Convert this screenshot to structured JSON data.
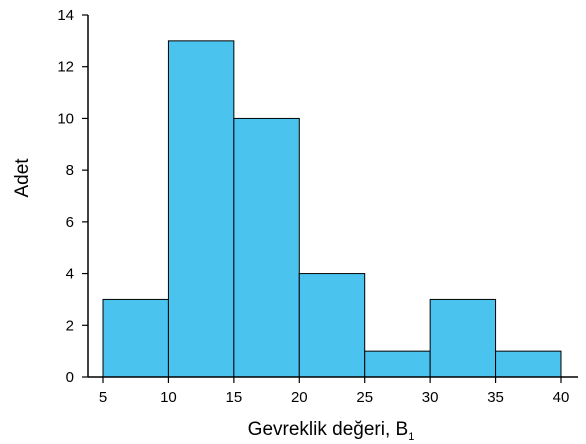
{
  "chart_data": {
    "type": "bar",
    "variant": "histogram",
    "bins": [
      {
        "start": 5,
        "end": 10,
        "value": 3
      },
      {
        "start": 10,
        "end": 15,
        "value": 13
      },
      {
        "start": 15,
        "end": 20,
        "value": 10
      },
      {
        "start": 20,
        "end": 25,
        "value": 4
      },
      {
        "start": 25,
        "end": 30,
        "value": 1
      },
      {
        "start": 30,
        "end": 35,
        "value": 3
      },
      {
        "start": 35,
        "end": 40,
        "value": 1
      }
    ],
    "xlabel": "Gevreklik değeri, B",
    "xlabel_subscript": "1",
    "ylabel": "Adet",
    "xlim": [
      5,
      40
    ],
    "ylim": [
      0,
      14
    ],
    "x_ticks": [
      5,
      10,
      15,
      20,
      25,
      30,
      35,
      40
    ],
    "y_ticks": [
      0,
      2,
      4,
      6,
      8,
      10,
      12,
      14
    ],
    "bar_color": "#4bc3ef",
    "edge_color": "#000000",
    "grid": false,
    "legend": "none"
  }
}
